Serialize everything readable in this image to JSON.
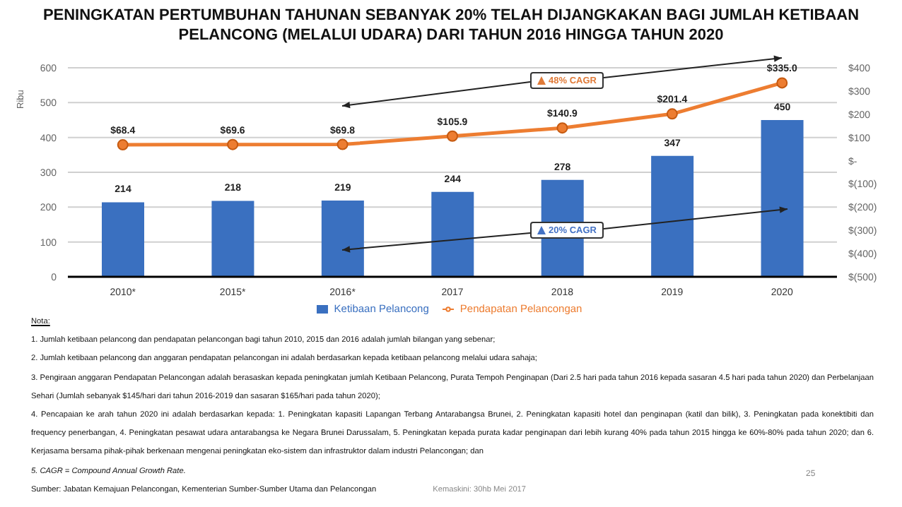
{
  "chart_data": {
    "type": "bar",
    "title": "PENINGKATAN PERTUMBUHAN TAHUNAN SEBANYAK 20% TELAH DIJANGKAKAN BAGI JUMLAH KETIBAAN PELANCONG (MELALUI UDARA) DARI TAHUN 2016 HINGGA TAHUN 2020",
    "ylabel": "Ribu",
    "categories": [
      "2010*",
      "2015*",
      "2016*",
      "2017",
      "2018",
      "2019",
      "2020"
    ],
    "series": [
      {
        "name": "Ketibaan Pelancong",
        "color": "#3a70c0",
        "values": [
          214,
          218,
          219,
          244,
          278,
          347,
          450
        ],
        "value_labels": [
          "214",
          "218",
          "219",
          "244",
          "278",
          "347",
          "450"
        ]
      },
      {
        "name": "Pendapatan Pelancongan",
        "type": "line",
        "axis": "y2",
        "color": "#ed7d31",
        "values": [
          68.4,
          69.6,
          69.8,
          105.9,
          140.9,
          201.4,
          335.0
        ],
        "value_labels": [
          "$68.4",
          "$69.6",
          "$69.8",
          "$105.9",
          "$140.9",
          "$201.4",
          "$335.0"
        ]
      }
    ],
    "ylim": [
      0,
      600
    ],
    "yticks": [
      0,
      100,
      200,
      300,
      400,
      500,
      600
    ],
    "y2lim": [
      -500,
      400
    ],
    "y2ticks": [
      {
        "value": -500,
        "label": "$(500)"
      },
      {
        "value": -400,
        "label": "$(400)"
      },
      {
        "value": -300,
        "label": "$(300)"
      },
      {
        "value": -200,
        "label": "$(200)"
      },
      {
        "value": -100,
        "label": "$(100)"
      },
      {
        "value": 0,
        "label": "$-"
      },
      {
        "value": 100,
        "label": "$100"
      },
      {
        "value": 200,
        "label": "$200"
      },
      {
        "value": 300,
        "label": "$300"
      },
      {
        "value": 400,
        "label": "$400"
      }
    ],
    "grid": "y",
    "legend": "bottom",
    "marker": "circle",
    "line_style": "solid",
    "annotations": [
      "48% CAGR",
      "20% CAGR",
      "Nota:",
      "1. Jumlah ketibaan pelancong dan pendapatan pelancongan bagi tahun 2010, 2015 dan 2016 adalah jumlah bilangan yang sebenar;",
      "2. Jumlah ketibaan pelancong dan anggaran pendapatan pelancongan ini adalah berdasarkan kepada ketibaan pelancong melalui udara sahaja;",
      "3. Pengiraan anggaran Pendapatan Pelancongan adalah berasaskan kepada peningkatan jumlah Ketibaan Pelancong, Purata Tempoh Penginapan (Dari 2.5 hari pada tahun 2016 kepada sasaran 4.5 hari pada tahun 2020) dan Perbelanjaan Sehari (Jumlah sebanyak $145/hari dari tahun 2016-2019 dan sasaran $165/hari pada tahun 2020);",
      "4. Pencapaian ke arah tahun 2020 ini adalah berdasarkan kepada: 1. Peningkatan kapasiti Lapangan Terbang Antarabangsa Brunei, 2. Peningkatan kapasiti hotel dan penginapan (katil dan bilik), 3. Peningkatan pada konektibiti dan frequency penerbangan, 4. Peningkatan pesawat udara antarabangsa ke Negara Brunei Darussalam, 5. Peningkatan kepada purata kadar penginapan dari lebih kurang 40% pada tahun 2015 hingga ke 60%-80% pada tahun 2020; dan 6. Kerjasama bersama pihak-pihak berkenaan mengenai peningkatan eko-sistem dan infrastruktor dalam industri Pelancongan; dan",
      "5. CAGR = Compound Annual Growth Rate.",
      "Sumber: Jabatan Kemajuan Pelancongan, Kementerian Sumber-Sumber Utama dan Pelancongan",
      "Kemaskini: 30hb Mei 2017",
      "25"
    ]
  }
}
